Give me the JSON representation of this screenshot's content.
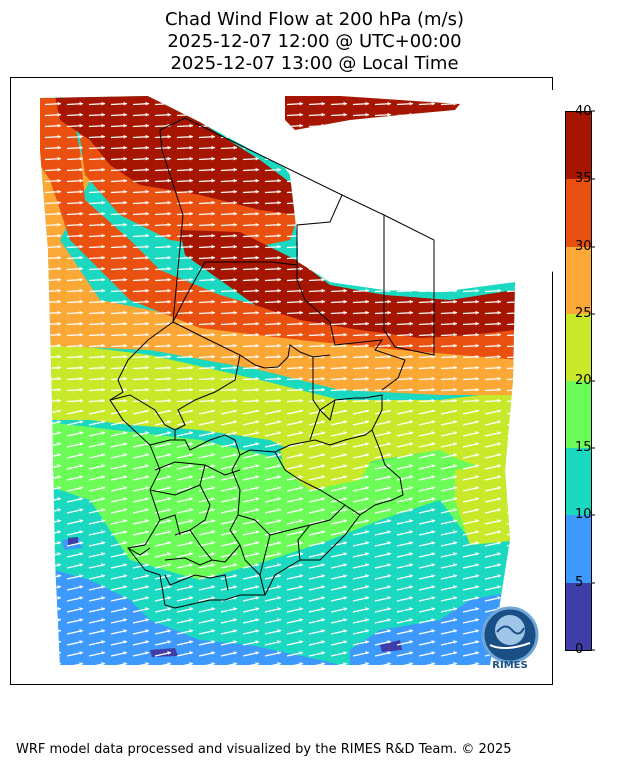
{
  "title": {
    "line1": "Chad Wind Flow at 200 hPa (m/s)",
    "line2": "2025-12-07 12:00 @ UTC+00:00",
    "line3": "2025-12-07 13:00 @ Local Time"
  },
  "colorbar": {
    "ticks": [
      "40",
      "35",
      "30",
      "25",
      "20",
      "15",
      "10",
      "5",
      "0"
    ],
    "bands": [
      {
        "range": [
          35,
          40
        ],
        "color": "#a51500"
      },
      {
        "range": [
          30,
          35
        ],
        "color": "#ea5010"
      },
      {
        "range": [
          25,
          30
        ],
        "color": "#fca836"
      },
      {
        "range": [
          20,
          25
        ],
        "color": "#c8e82a"
      },
      {
        "range": [
          15,
          20
        ],
        "color": "#6cfc58"
      },
      {
        "range": [
          10,
          15
        ],
        "color": "#1ad9c0"
      },
      {
        "range": [
          5,
          10
        ],
        "color": "#3e99fd"
      },
      {
        "range": [
          0,
          5
        ],
        "color": "#3f3ea8"
      }
    ]
  },
  "logo": {
    "text": "RIMES"
  },
  "footer": "WRF model data processed and visualized by the RIMES R&D Team. © 2025"
}
